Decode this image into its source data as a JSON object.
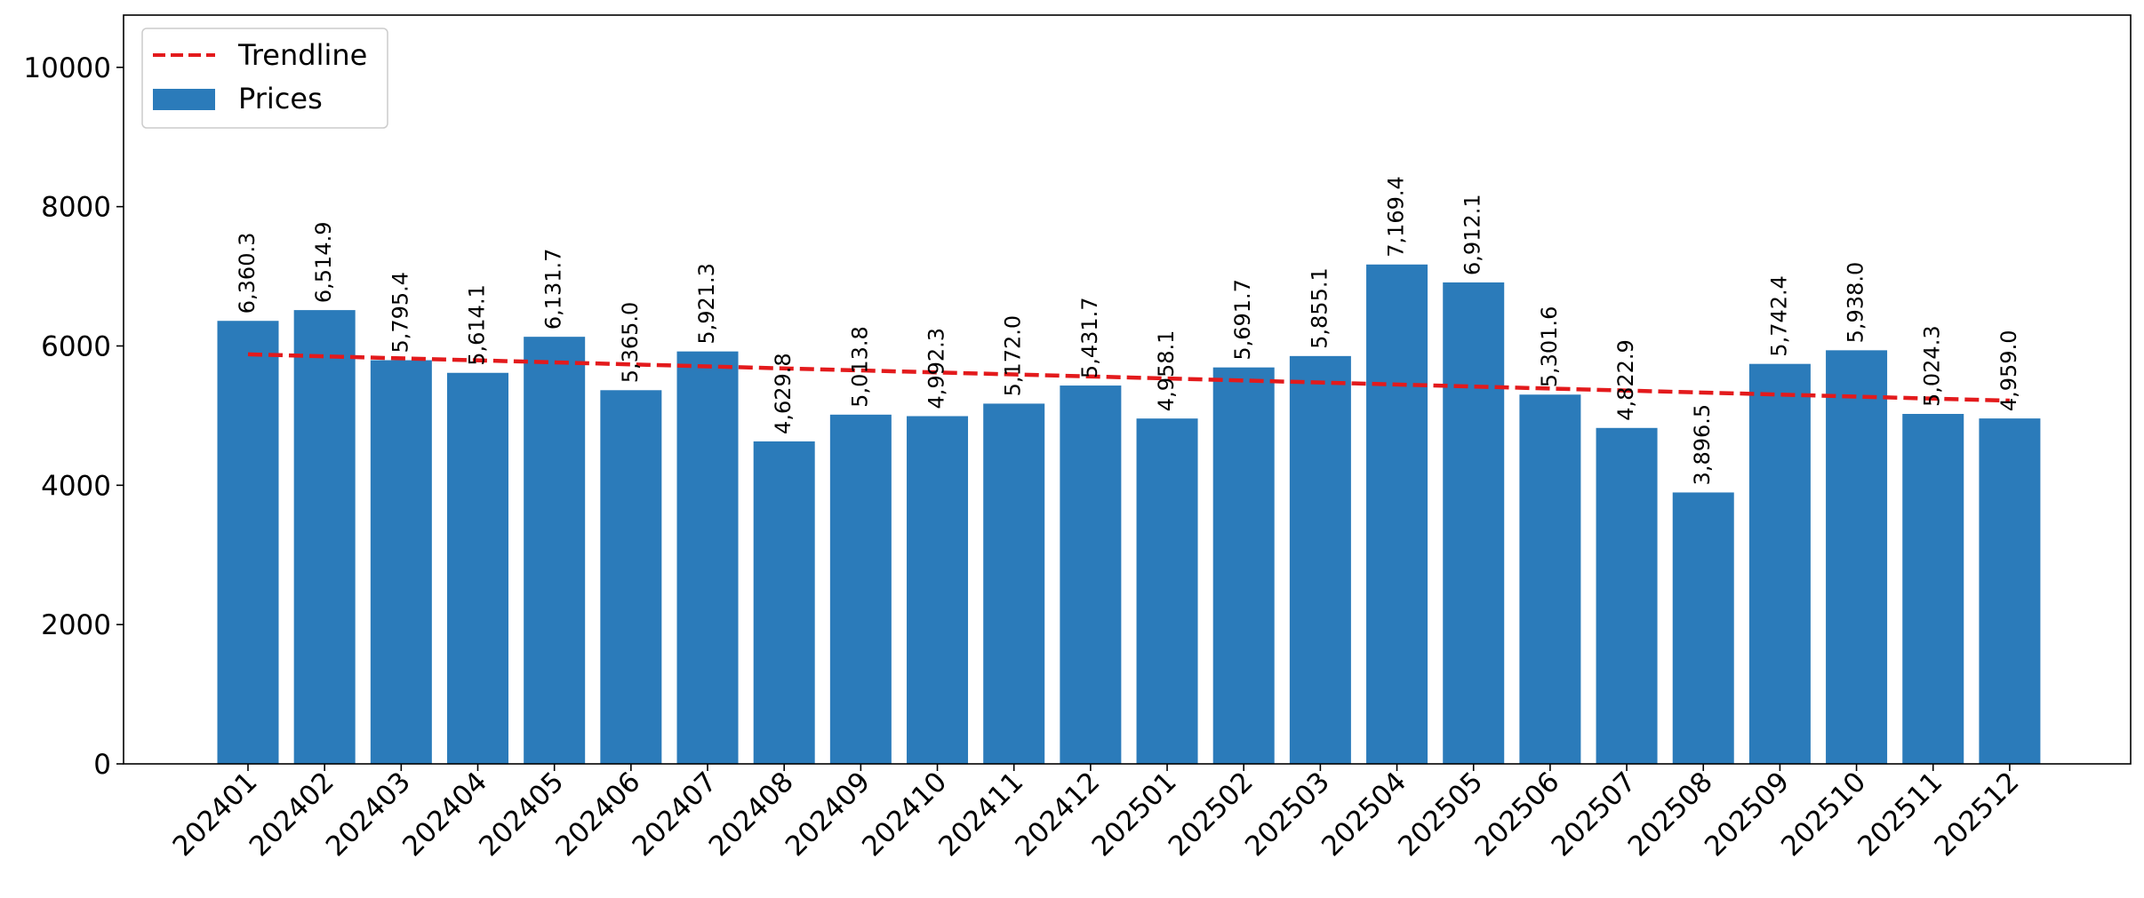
{
  "chart_data": {
    "type": "bar",
    "categories": [
      "202401",
      "202402",
      "202403",
      "202404",
      "202405",
      "202406",
      "202407",
      "202408",
      "202409",
      "202410",
      "202411",
      "202412",
      "202501",
      "202502",
      "202503",
      "202504",
      "202505",
      "202506",
      "202507",
      "202508",
      "202509",
      "202510",
      "202511",
      "202512"
    ],
    "series": [
      {
        "name": "Prices",
        "values": [
          6360.3,
          6514.9,
          5795.4,
          5614.1,
          6131.7,
          5365.0,
          5921.3,
          4629.8,
          5013.8,
          4992.3,
          5172.0,
          5431.7,
          4958.1,
          5691.7,
          5855.1,
          7169.4,
          6912.1,
          5301.6,
          4822.9,
          3896.5,
          5742.4,
          5938.0,
          5024.3,
          4959.0
        ],
        "data_labels": [
          "6,360.3",
          "6,514.9",
          "5,795.4",
          "5,614.1",
          "6,131.7",
          "5,365.0",
          "5,921.3",
          "4,629.8",
          "5,013.8",
          "4,992.3",
          "5,172.0",
          "5,431.7",
          "4,958.1",
          "5,691.7",
          "5,855.1",
          "7,169.4",
          "6,912.1",
          "5,301.6",
          "4,822.9",
          "3,896.5",
          "5,742.4",
          "5,938.0",
          "5,024.3",
          "4,959.0"
        ],
        "color": "#2b7bba"
      },
      {
        "name": "Trendline",
        "type": "line",
        "style": "dashed",
        "start": 5880,
        "end": 5215,
        "color": "#e31a1c"
      }
    ],
    "title": "",
    "xlabel": "",
    "ylabel": "",
    "ylim": [
      0,
      10750
    ],
    "yticks": [
      0,
      2000,
      4000,
      6000,
      8000,
      10000
    ],
    "ytick_labels": [
      "0",
      "2000",
      "4000",
      "6000",
      "8000",
      "10000"
    ],
    "grid": false,
    "legend": {
      "placement": "top-left",
      "entries": [
        {
          "label": "Trendline",
          "marker": "dashed-line",
          "color": "#e31a1c"
        },
        {
          "label": "Prices",
          "marker": "patch",
          "color": "#2b7bba"
        }
      ]
    }
  }
}
